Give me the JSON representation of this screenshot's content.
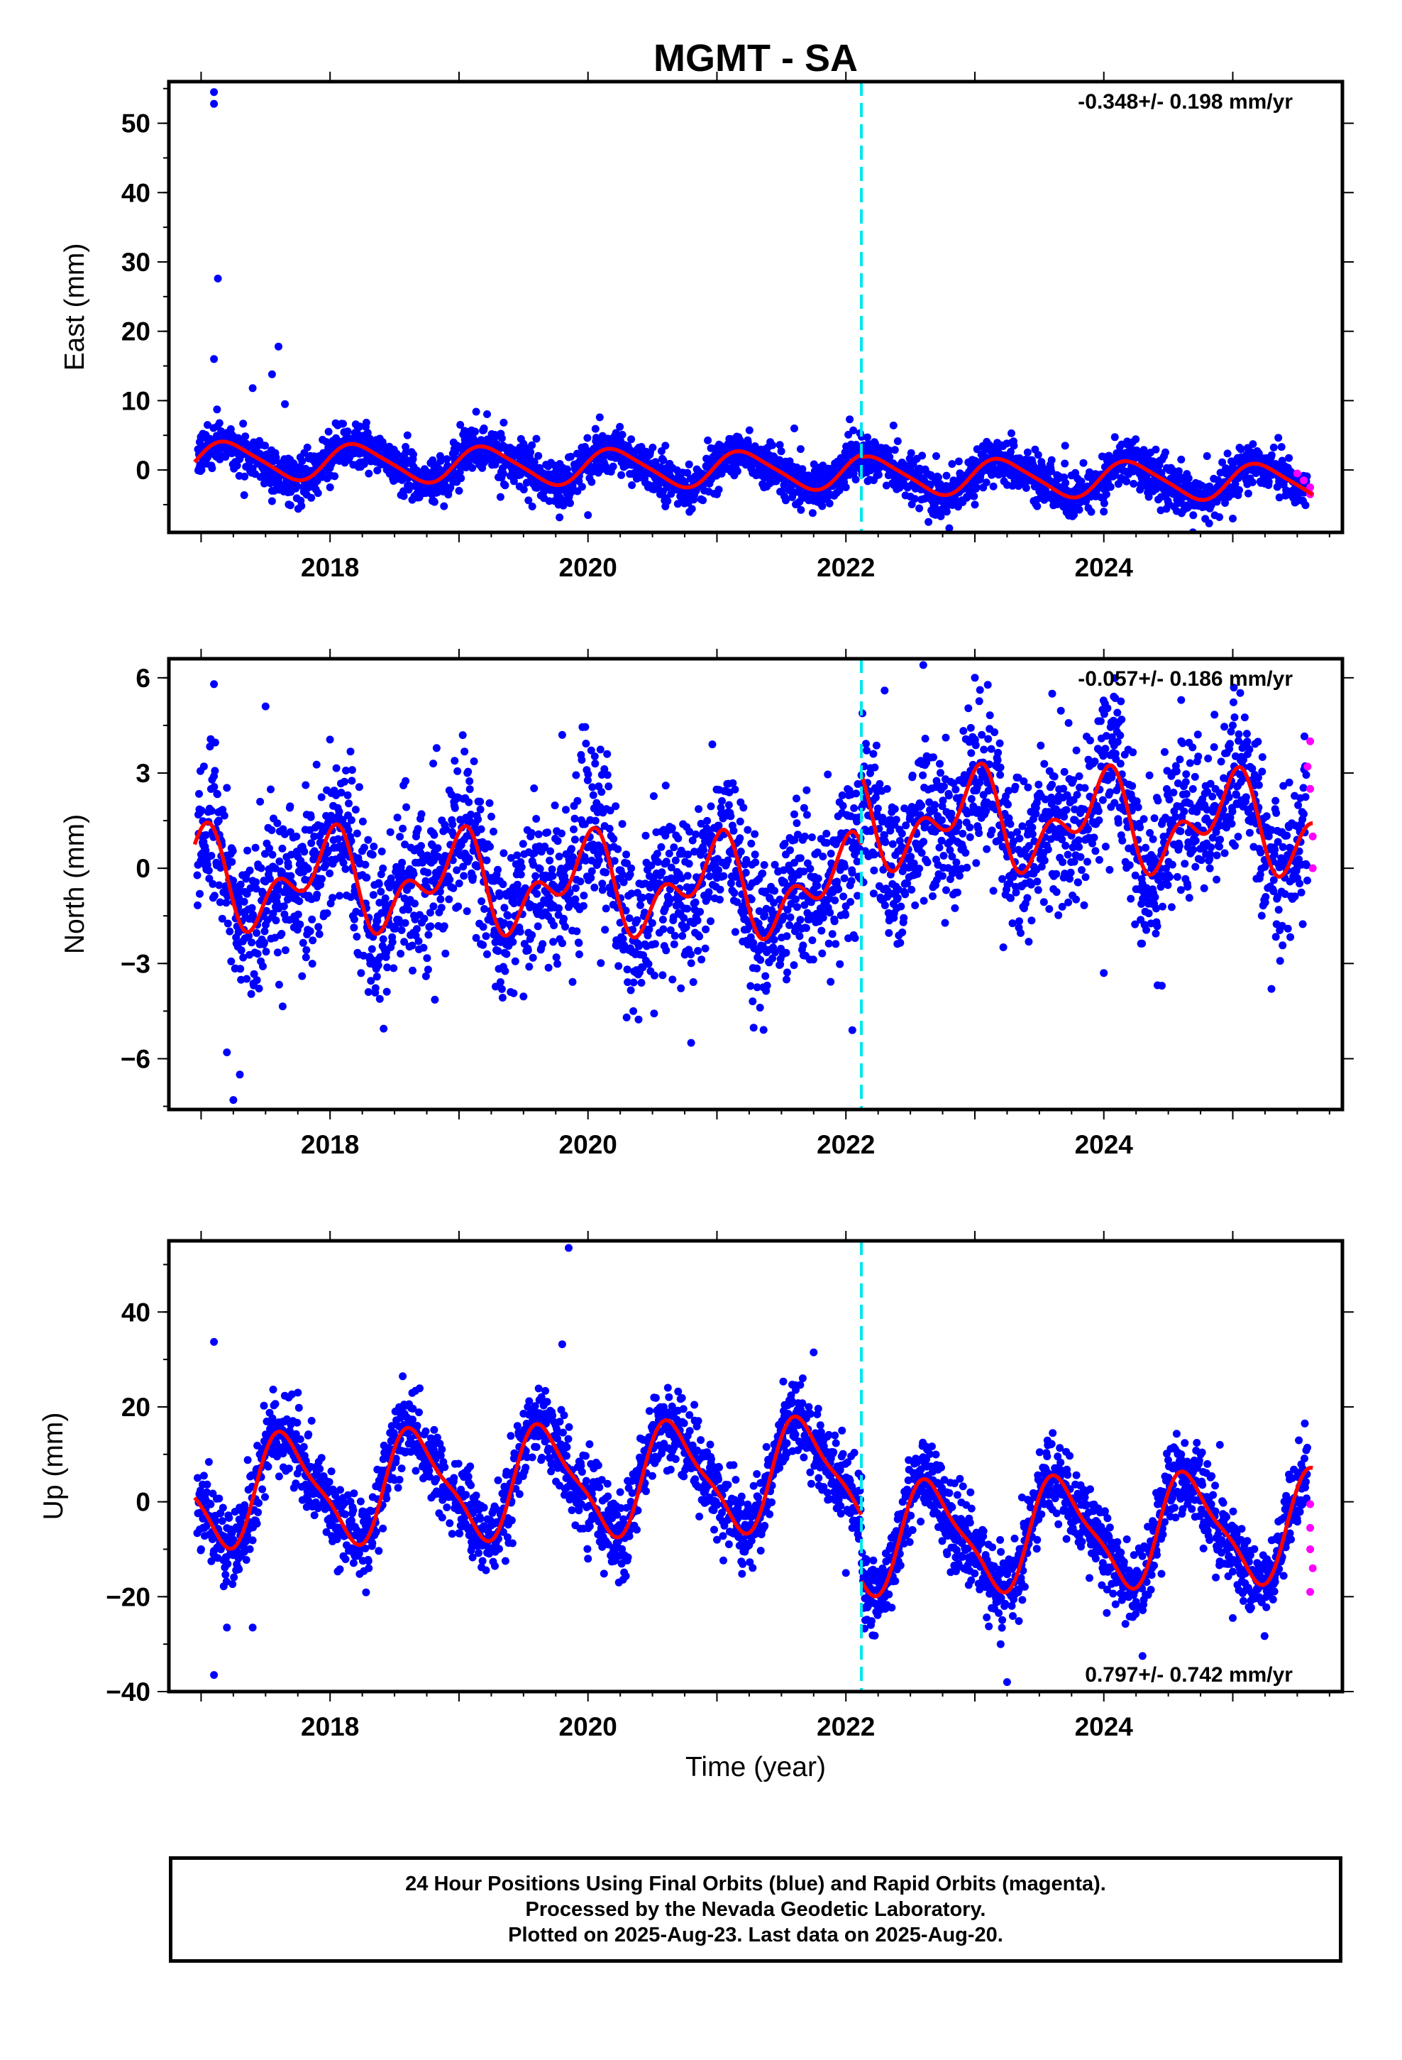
{
  "title": "MGMT - SA",
  "xlabel": "Time (year)",
  "footer": {
    "line1": "24 Hour Positions Using Final Orbits (blue) and Rapid Orbits (magenta).",
    "line2": "Processed by the Nevada Geodetic Laboratory.",
    "line3": "Plotted on 2025-Aug-23. Last data on 2025-Aug-20."
  },
  "colors": {
    "final_points": "#0000ff",
    "rapid_points": "#ff00ff",
    "model_line": "#ff0000",
    "event_line": "#00e5ee"
  },
  "chart_data": [
    {
      "type": "scatter",
      "ylabel": "East (mm)",
      "xlim": [
        2016.75,
        2025.85
      ],
      "ylim": [
        -9,
        56
      ],
      "xticks": [
        2018,
        2020,
        2022,
        2024
      ],
      "yticks": [
        0,
        10,
        20,
        30,
        40,
        50
      ],
      "rate_text": "-0.348+/- 0.198 mm/yr",
      "rate_position": "top-right",
      "event_line_x": 2022.12,
      "series": [
        {
          "values": [
            [
              2017.0,
              0.5
            ],
            [
              2017.1,
              54.5
            ],
            [
              2017.1,
              52.8
            ],
            [
              2017.13,
              27.6
            ],
            [
              2017.1,
              16.0
            ],
            [
              2017.6,
              17.8
            ],
            [
              2017.55,
              13.8
            ],
            [
              2017.4,
              11.8
            ],
            [
              2017.65,
              9.5
            ],
            [
              2017.05,
              6.5
            ],
            [
              2017.55,
              -3.0
            ],
            [
              2017.55,
              -4.5
            ],
            [
              2018.0,
              -2.5
            ],
            [
              2018.6,
              5.0
            ],
            [
              2019.0,
              -3.0
            ],
            [
              2019.6,
              4.5
            ],
            [
              2020.0,
              -6.5
            ],
            [
              2020.6,
              3.5
            ],
            [
              2021.0,
              -3.5
            ],
            [
              2021.6,
              6.0
            ],
            [
              2022.0,
              -2.5
            ],
            [
              2022.7,
              2.0
            ],
            [
              2023.0,
              -5.0
            ],
            [
              2023.7,
              3.5
            ],
            [
              2024.0,
              -6.0
            ],
            [
              2024.6,
              1.5
            ],
            [
              2024.8,
              2.0
            ],
            [
              2025.0,
              -7.0
            ],
            [
              2025.5,
              -1.0
            ]
          ]
        },
        {
          "values": [
            [
              2025.5,
              -0.5
            ],
            [
              2025.55,
              -1.5
            ],
            [
              2025.6,
              -2.5
            ],
            [
              2025.6,
              -3.5
            ]
          ]
        }
      ],
      "model": {
        "offsets": [
          [
            2016.95,
            2022.12,
            0.0
          ],
          [
            2022.12,
            2025.62,
            -0.4
          ]
        ],
        "trend_mm_per_yr": -0.348,
        "annual": [
          2.5,
          0.5
        ],
        "semiannual": [
          0.4,
          0.2
        ]
      }
    },
    {
      "type": "scatter",
      "ylabel": "North (mm)",
      "xlim": [
        2016.75,
        2025.85
      ],
      "ylim": [
        -7.6,
        6.6
      ],
      "xticks": [
        2018,
        2020,
        2022,
        2024
      ],
      "yticks": [
        -6,
        -3,
        0,
        3,
        6
      ],
      "rate_text": "-0.057+/- 0.186 mm/yr",
      "rate_position": "top-right",
      "event_line_x": 2022.12,
      "series": [
        {
          "values": [
            [
              2017.1,
              5.8
            ],
            [
              2017.1,
              2.9
            ],
            [
              2017.5,
              5.1
            ],
            [
              2017.15,
              1.8
            ],
            [
              2017.3,
              -6.5
            ],
            [
              2017.25,
              -7.3
            ],
            [
              2017.2,
              -5.8
            ],
            [
              2019.4,
              -3.9
            ],
            [
              2018.8,
              3.3
            ],
            [
              2019.8,
              4.2
            ],
            [
              2020.3,
              -4.7
            ],
            [
              2020.8,
              -5.5
            ],
            [
              2021.6,
              1.7
            ],
            [
              2022.05,
              -5.1
            ],
            [
              2022.6,
              6.4
            ],
            [
              2023.0,
              6.0
            ],
            [
              2022.3,
              5.6
            ],
            [
              2023.6,
              5.5
            ],
            [
              2024.0,
              -3.3
            ],
            [
              2024.45,
              -3.7
            ],
            [
              2024.6,
              5.3
            ],
            [
              2025.0,
              4.5
            ],
            [
              2025.3,
              -3.8
            ]
          ]
        },
        {
          "values": [
            [
              2025.6,
              4.0
            ],
            [
              2025.6,
              2.5
            ],
            [
              2025.62,
              1.0
            ],
            [
              2025.62,
              0.0
            ],
            [
              2025.58,
              3.2
            ]
          ]
        }
      ],
      "model": {
        "offsets": [
          [
            2016.95,
            2022.12,
            -0.6
          ],
          [
            2022.12,
            2025.62,
            1.6
          ]
        ],
        "trend_mm_per_yr": -0.057,
        "annual": [
          -0.2,
          1.1
        ],
        "semiannual": [
          0.7,
          0.5
        ]
      }
    },
    {
      "type": "scatter",
      "ylabel": "Up (mm)",
      "xlim": [
        2016.75,
        2025.85
      ],
      "ylim": [
        -40,
        55
      ],
      "xticks": [
        2018,
        2020,
        2022,
        2024
      ],
      "yticks": [
        -40,
        -20,
        0,
        20,
        40
      ],
      "rate_text": "0.797+/- 0.742 mm/yr",
      "rate_position": "bottom-right",
      "event_line_x": 2022.12,
      "series": [
        {
          "values": [
            [
              2017.1,
              33.7
            ],
            [
              2017.1,
              -36.5
            ],
            [
              2017.2,
              -26.5
            ],
            [
              2017.4,
              -26.5
            ],
            [
              2017.0,
              -10.0
            ],
            [
              2019.8,
              33.2
            ],
            [
              2019.85,
              53.5
            ],
            [
              2021.75,
              31.5
            ],
            [
              2022.0,
              -15.0
            ],
            [
              2023.25,
              -38.0
            ],
            [
              2023.2,
              -30.0
            ],
            [
              2024.3,
              -32.5
            ],
            [
              2024.6,
              10.0
            ],
            [
              2024.9,
              12.0
            ],
            [
              2025.0,
              -24.5
            ],
            [
              2020.0,
              -12.0
            ],
            [
              2021.0,
              -8.0
            ],
            [
              2018.3,
              -14.0
            ],
            [
              2019.3,
              -10.0
            ]
          ]
        },
        {
          "values": [
            [
              2025.6,
              -0.5
            ],
            [
              2025.6,
              -5.5
            ],
            [
              2025.6,
              -10.0
            ],
            [
              2025.62,
              -14.0
            ],
            [
              2025.6,
              -19.0
            ]
          ]
        }
      ],
      "model": {
        "offsets": [
          [
            2016.95,
            2022.12,
            5.5
          ],
          [
            2022.12,
            2025.62,
            -8.5
          ]
        ],
        "trend_mm_per_yr": 0.797,
        "annual": [
          -9.5,
          -5.5
        ],
        "semiannual": [
          1.5,
          2.5
        ]
      }
    }
  ]
}
